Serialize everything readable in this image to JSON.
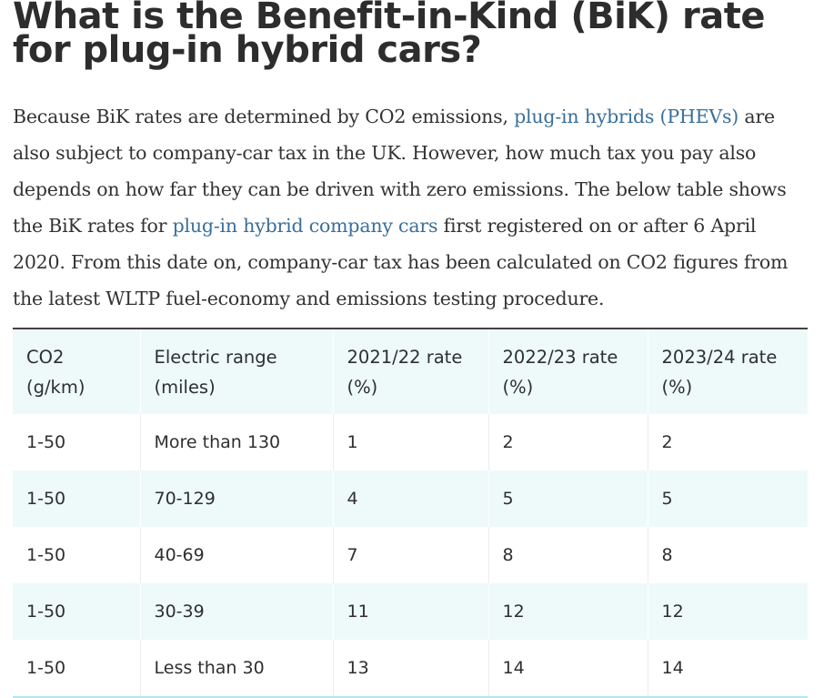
{
  "heading": "What is the Benefit-in-Kind (BiK) rate for plug-in hybrid cars?",
  "intro": {
    "part1": "Because BiK rates are determined by CO2 emissions, ",
    "link1": "plug-in hybrids (PHEVs)",
    "part2": " are also subject to company-car tax in the UK. However, how much tax you pay also depends on how far they can be driven with zero emissions. The below table shows the BiK rates for ",
    "link2": "plug-in hybrid company cars",
    "part3": " first registered on or after 6 April 2020. From this date on, company-car tax has been calculated on CO2 figures from the latest WLTP fuel-economy and emissions testing procedure."
  },
  "table": {
    "headers": [
      "CO2 (g/km)",
      "Electric range (miles)",
      "2021/22 rate (%)",
      "2022/23 rate (%)",
      "2023/24 rate (%)"
    ],
    "rows": [
      [
        "1-50",
        "More than 130",
        "1",
        "2",
        "2"
      ],
      [
        "1-50",
        "70-129",
        "4",
        "5",
        "5"
      ],
      [
        "1-50",
        "40-69",
        "7",
        "8",
        "8"
      ],
      [
        "1-50",
        "30-39",
        "11",
        "12",
        "12"
      ],
      [
        "1-50",
        "Less than 30",
        "13",
        "14",
        "14"
      ]
    ]
  }
}
